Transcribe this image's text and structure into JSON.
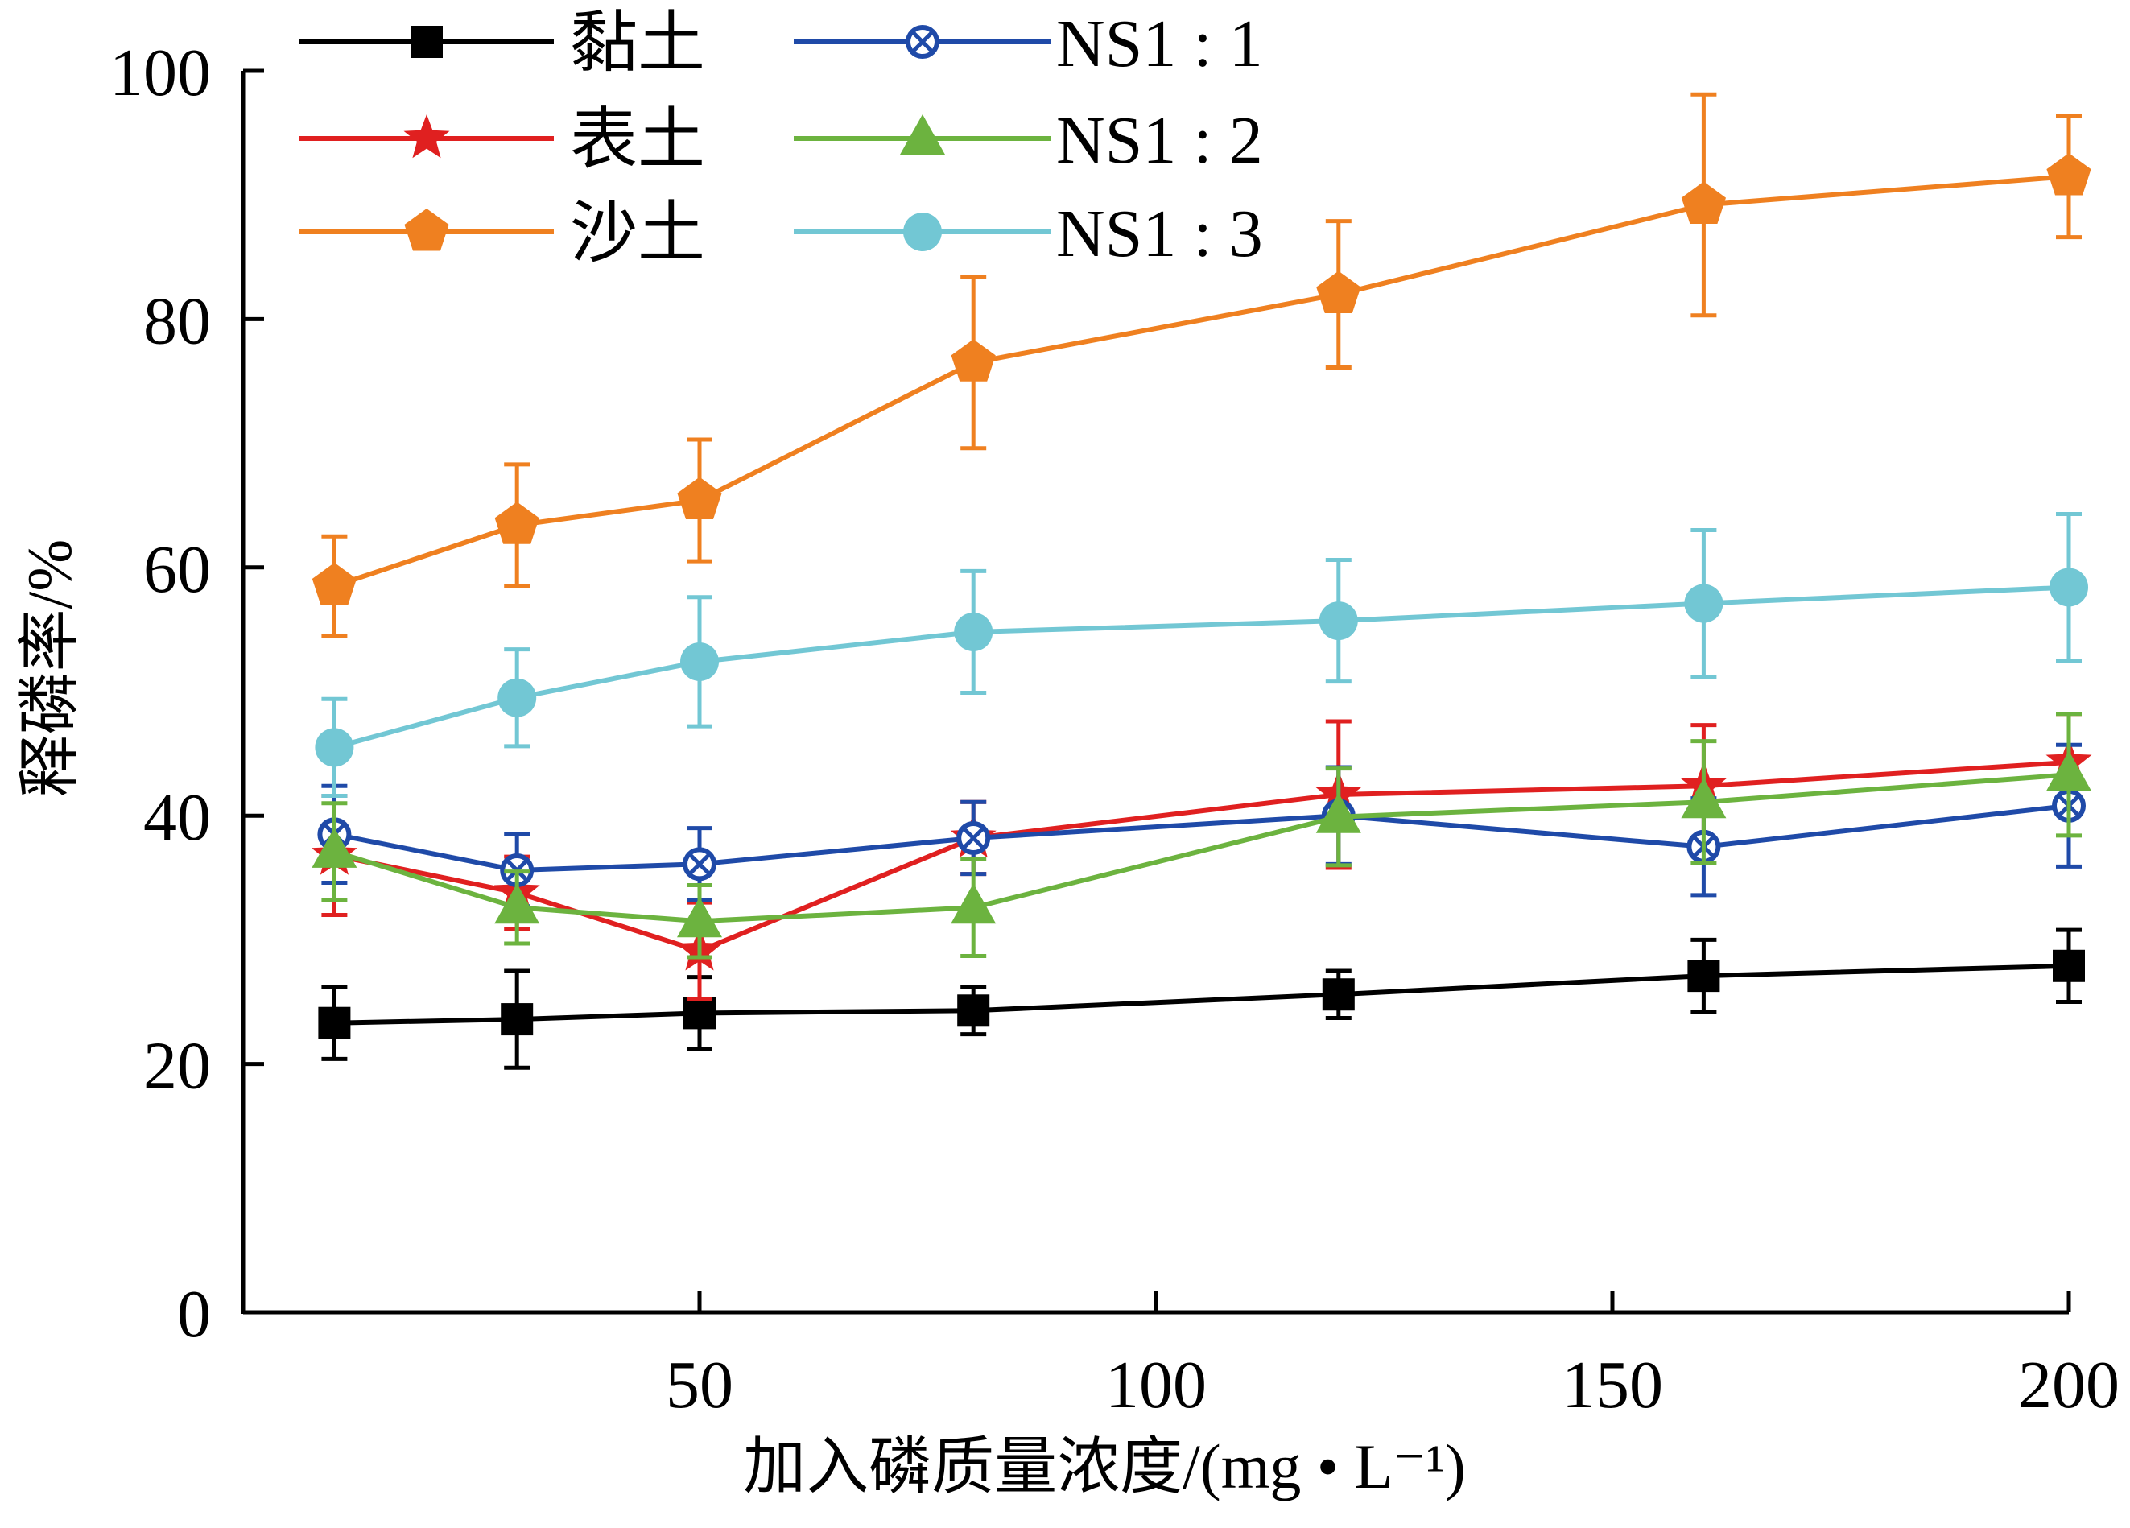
{
  "chart_data": {
    "type": "line",
    "xlabel": "加入磷质量浓度/(mg • L⁻¹)",
    "ylabel": "释磷率/%",
    "xlim": [
      0,
      200
    ],
    "ylim": [
      0,
      100
    ],
    "x_ticks": [
      50,
      100,
      150,
      200
    ],
    "y_ticks": [
      0,
      20,
      40,
      60,
      80,
      100
    ],
    "grid": false,
    "legend_position": "top-left",
    "x": [
      10,
      30,
      50,
      80,
      120,
      160,
      200
    ],
    "series": [
      {
        "name": "黏土",
        "color": "#000000",
        "marker": "square",
        "values": [
          23.3,
          23.6,
          24.1,
          24.3,
          25.6,
          27.1,
          27.9
        ],
        "errors": [
          2.9,
          3.9,
          2.9,
          1.9,
          1.9,
          2.9,
          2.9
        ]
      },
      {
        "name": "表土",
        "color": "#e02020",
        "marker": "star",
        "values": [
          36.8,
          33.8,
          29.1,
          38.2,
          41.7,
          42.4,
          44.3
        ],
        "errors": [
          4.8,
          2.9,
          3.9,
          2.9,
          5.9,
          4.9,
          3.9
        ]
      },
      {
        "name": "沙土",
        "color": "#ef8020",
        "marker": "pentagon",
        "values": [
          58.5,
          63.4,
          65.4,
          76.5,
          82.0,
          89.2,
          91.5
        ],
        "errors": [
          4.0,
          4.9,
          4.9,
          6.9,
          5.9,
          8.9,
          4.9
        ]
      },
      {
        "name": "NS1 : 1",
        "color": "#1f4aa8",
        "marker": "circle-x",
        "values": [
          38.5,
          35.6,
          36.1,
          38.2,
          40.0,
          37.5,
          40.8
        ],
        "errors": [
          3.9,
          2.9,
          2.9,
          2.9,
          3.9,
          3.9,
          4.9
        ]
      },
      {
        "name": "NS1 : 2",
        "color": "#6cb33f",
        "marker": "triangle",
        "values": [
          37.1,
          32.6,
          31.5,
          32.6,
          39.9,
          41.1,
          43.3
        ],
        "errors": [
          3.9,
          2.9,
          2.9,
          3.9,
          3.9,
          4.9,
          4.9
        ]
      },
      {
        "name": "NS1 : 3",
        "color": "#72c7d4",
        "marker": "circle",
        "values": [
          45.5,
          49.5,
          52.4,
          54.8,
          55.7,
          57.1,
          58.4
        ],
        "errors": [
          3.9,
          3.9,
          5.2,
          4.9,
          4.9,
          5.9,
          5.9
        ]
      }
    ]
  }
}
